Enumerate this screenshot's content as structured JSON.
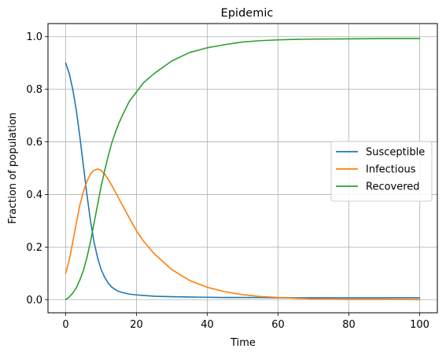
{
  "chart_data": {
    "type": "line",
    "title": "Epidemic",
    "xlabel": "Time",
    "ylabel": "Fraction of population",
    "xlim": [
      -5,
      105
    ],
    "ylim": [
      -0.05,
      1.05
    ],
    "xticks": [
      0,
      20,
      40,
      60,
      80,
      100
    ],
    "xtick_labels": [
      "0",
      "20",
      "40",
      "60",
      "80",
      "100"
    ],
    "yticks": [
      0.0,
      0.2,
      0.4,
      0.6,
      0.8,
      1.0
    ],
    "ytick_labels": [
      "0.0",
      "0.2",
      "0.4",
      "0.6",
      "0.8",
      "1.0"
    ],
    "grid": true,
    "legend_position": "center-right",
    "x": [
      0,
      1,
      2,
      3,
      4,
      5,
      6,
      7,
      8,
      9,
      10,
      11,
      12,
      13,
      14,
      15,
      16,
      18,
      20,
      22,
      25,
      30,
      35,
      40,
      45,
      50,
      55,
      60,
      65,
      70,
      80,
      90,
      100
    ],
    "series": [
      {
        "name": "Susceptible",
        "color": "#1f77b4",
        "values": [
          0.9,
          0.86,
          0.8,
          0.72,
          0.62,
          0.51,
          0.4,
          0.3,
          0.22,
          0.16,
          0.115,
          0.085,
          0.063,
          0.048,
          0.038,
          0.031,
          0.027,
          0.021,
          0.018,
          0.016,
          0.013,
          0.011,
          0.01,
          0.009,
          0.008,
          0.008,
          0.008,
          0.007,
          0.007,
          0.007,
          0.007,
          0.007,
          0.007
        ]
      },
      {
        "name": "Infectious",
        "color": "#ff7f0e",
        "values": [
          0.1,
          0.15,
          0.22,
          0.29,
          0.36,
          0.41,
          0.45,
          0.478,
          0.492,
          0.497,
          0.492,
          0.478,
          0.458,
          0.435,
          0.41,
          0.385,
          0.36,
          0.31,
          0.262,
          0.222,
          0.175,
          0.114,
          0.073,
          0.047,
          0.03,
          0.019,
          0.012,
          0.008,
          0.005,
          0.003,
          0.001,
          0.001,
          0.0
        ]
      },
      {
        "name": "Recovered",
        "color": "#2ca02c",
        "values": [
          0.0,
          0.01,
          0.025,
          0.045,
          0.075,
          0.11,
          0.16,
          0.22,
          0.29,
          0.36,
          0.43,
          0.49,
          0.545,
          0.595,
          0.635,
          0.67,
          0.7,
          0.755,
          0.79,
          0.825,
          0.86,
          0.908,
          0.94,
          0.958,
          0.97,
          0.98,
          0.985,
          0.988,
          0.99,
          0.991,
          0.992,
          0.993,
          0.993
        ]
      }
    ]
  }
}
